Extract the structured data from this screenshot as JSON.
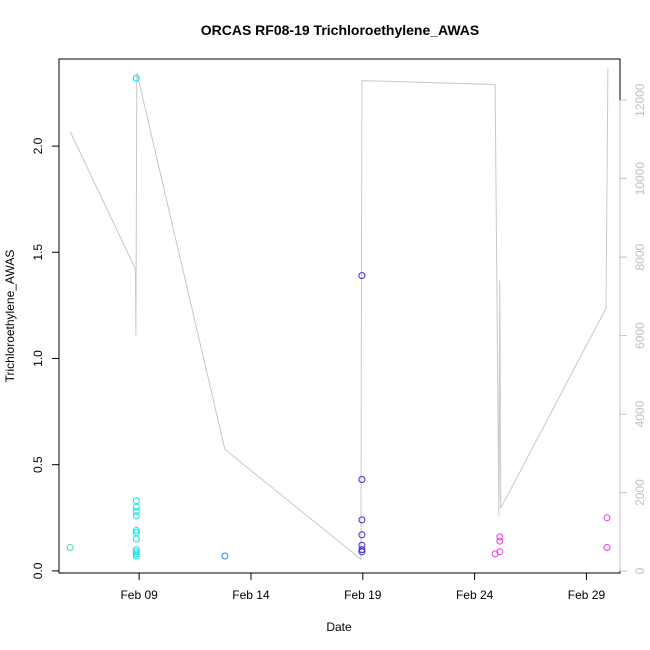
{
  "chart_data": {
    "type": "scatter",
    "title": "ORCAS RF08-19 Trichloroethylene_AWAS",
    "xlabel": "Date",
    "ylabel": "Trichloroethylene_AWAS",
    "x_ticks": [
      {
        "date": "2016-02-09",
        "label": "Feb 09"
      },
      {
        "date": "2016-02-14",
        "label": "Feb 14"
      },
      {
        "date": "2016-02-19",
        "label": "Feb 19"
      },
      {
        "date": "2016-02-24",
        "label": "Feb 24"
      },
      {
        "date": "2016-02-29",
        "label": "Feb 29"
      }
    ],
    "xlim": [
      "2016-02-05T10:00",
      "2016-03-01T12:00"
    ],
    "y_ticks": [
      "0.0",
      "0.5",
      "1.0",
      "1.5",
      "2.0"
    ],
    "ylim": [
      -0.01,
      2.41
    ],
    "y2_ticks": [
      "0",
      "2000",
      "4000",
      "6000",
      "8000",
      "10000",
      "12000"
    ],
    "y2lim": [
      -50,
      13050
    ],
    "y2_color": "#c0c0c0",
    "grid": false,
    "series": [
      {
        "color": "#40e0a0",
        "points": [
          {
            "x": "2016-02-05T22:00",
            "y": 0.11
          }
        ]
      },
      {
        "color": "#00e5e5",
        "points": [
          {
            "x": "2016-02-08T21:00",
            "y": 2.32
          },
          {
            "x": "2016-02-08T21:00",
            "y": 0.33
          },
          {
            "x": "2016-02-08T21:00",
            "y": 0.3
          },
          {
            "x": "2016-02-08T21:00",
            "y": 0.28
          },
          {
            "x": "2016-02-08T21:00",
            "y": 0.26
          },
          {
            "x": "2016-02-08T21:00",
            "y": 0.19
          },
          {
            "x": "2016-02-08T21:00",
            "y": 0.18
          },
          {
            "x": "2016-02-08T21:00",
            "y": 0.15
          },
          {
            "x": "2016-02-08T21:00",
            "y": 0.1
          },
          {
            "x": "2016-02-08T21:00",
            "y": 0.09
          },
          {
            "x": "2016-02-08T21:00",
            "y": 0.08
          },
          {
            "x": "2016-02-08T21:00",
            "y": 0.07
          }
        ]
      },
      {
        "color": "#2a8ad8",
        "points": [
          {
            "x": "2016-02-12T20:00",
            "y": 0.07
          }
        ]
      },
      {
        "color": "#3a2ad8",
        "points": [
          {
            "x": "2016-02-18T23:00",
            "y": 1.39
          },
          {
            "x": "2016-02-18T23:00",
            "y": 0.43
          },
          {
            "x": "2016-02-18T23:00",
            "y": 0.24
          },
          {
            "x": "2016-02-18T23:00",
            "y": 0.17
          },
          {
            "x": "2016-02-18T23:00",
            "y": 0.12
          },
          {
            "x": "2016-02-18T23:00",
            "y": 0.1
          },
          {
            "x": "2016-02-18T23:00",
            "y": 0.09
          }
        ]
      },
      {
        "color": "#e040e0",
        "points": [
          {
            "x": "2016-02-24T22:00",
            "y": 0.08
          },
          {
            "x": "2016-02-25T03:00",
            "y": 0.16
          },
          {
            "x": "2016-02-25T03:00",
            "y": 0.14
          },
          {
            "x": "2016-02-25T03:00",
            "y": 0.09
          },
          {
            "x": "2016-02-29T22:00",
            "y": 0.25
          },
          {
            "x": "2016-02-29T22:00",
            "y": 0.11
          }
        ]
      }
    ],
    "line": {
      "color": "#c8c8c8",
      "axis": "right",
      "points": [
        {
          "x": "2016-02-05T22:00",
          "y": 11200
        },
        {
          "x": "2016-02-08T20:00",
          "y": 7700
        },
        {
          "x": "2016-02-08T20:30",
          "y": 6000
        },
        {
          "x": "2016-02-08T21:00",
          "y": 8700
        },
        {
          "x": "2016-02-08T21:30",
          "y": 12700
        },
        {
          "x": "2016-02-12T20:00",
          "y": 3100
        },
        {
          "x": "2016-02-18T22:00",
          "y": 300
        },
        {
          "x": "2016-02-18T23:00",
          "y": 12500
        },
        {
          "x": "2016-02-24T22:00",
          "y": 12400
        },
        {
          "x": "2016-02-25T02:00",
          "y": 1400
        },
        {
          "x": "2016-02-25T03:00",
          "y": 7400
        },
        {
          "x": "2016-02-25T04:00",
          "y": 1600
        },
        {
          "x": "2016-02-29T21:00",
          "y": 6700
        },
        {
          "x": "2016-02-29T23:00",
          "y": 12800
        }
      ]
    }
  }
}
